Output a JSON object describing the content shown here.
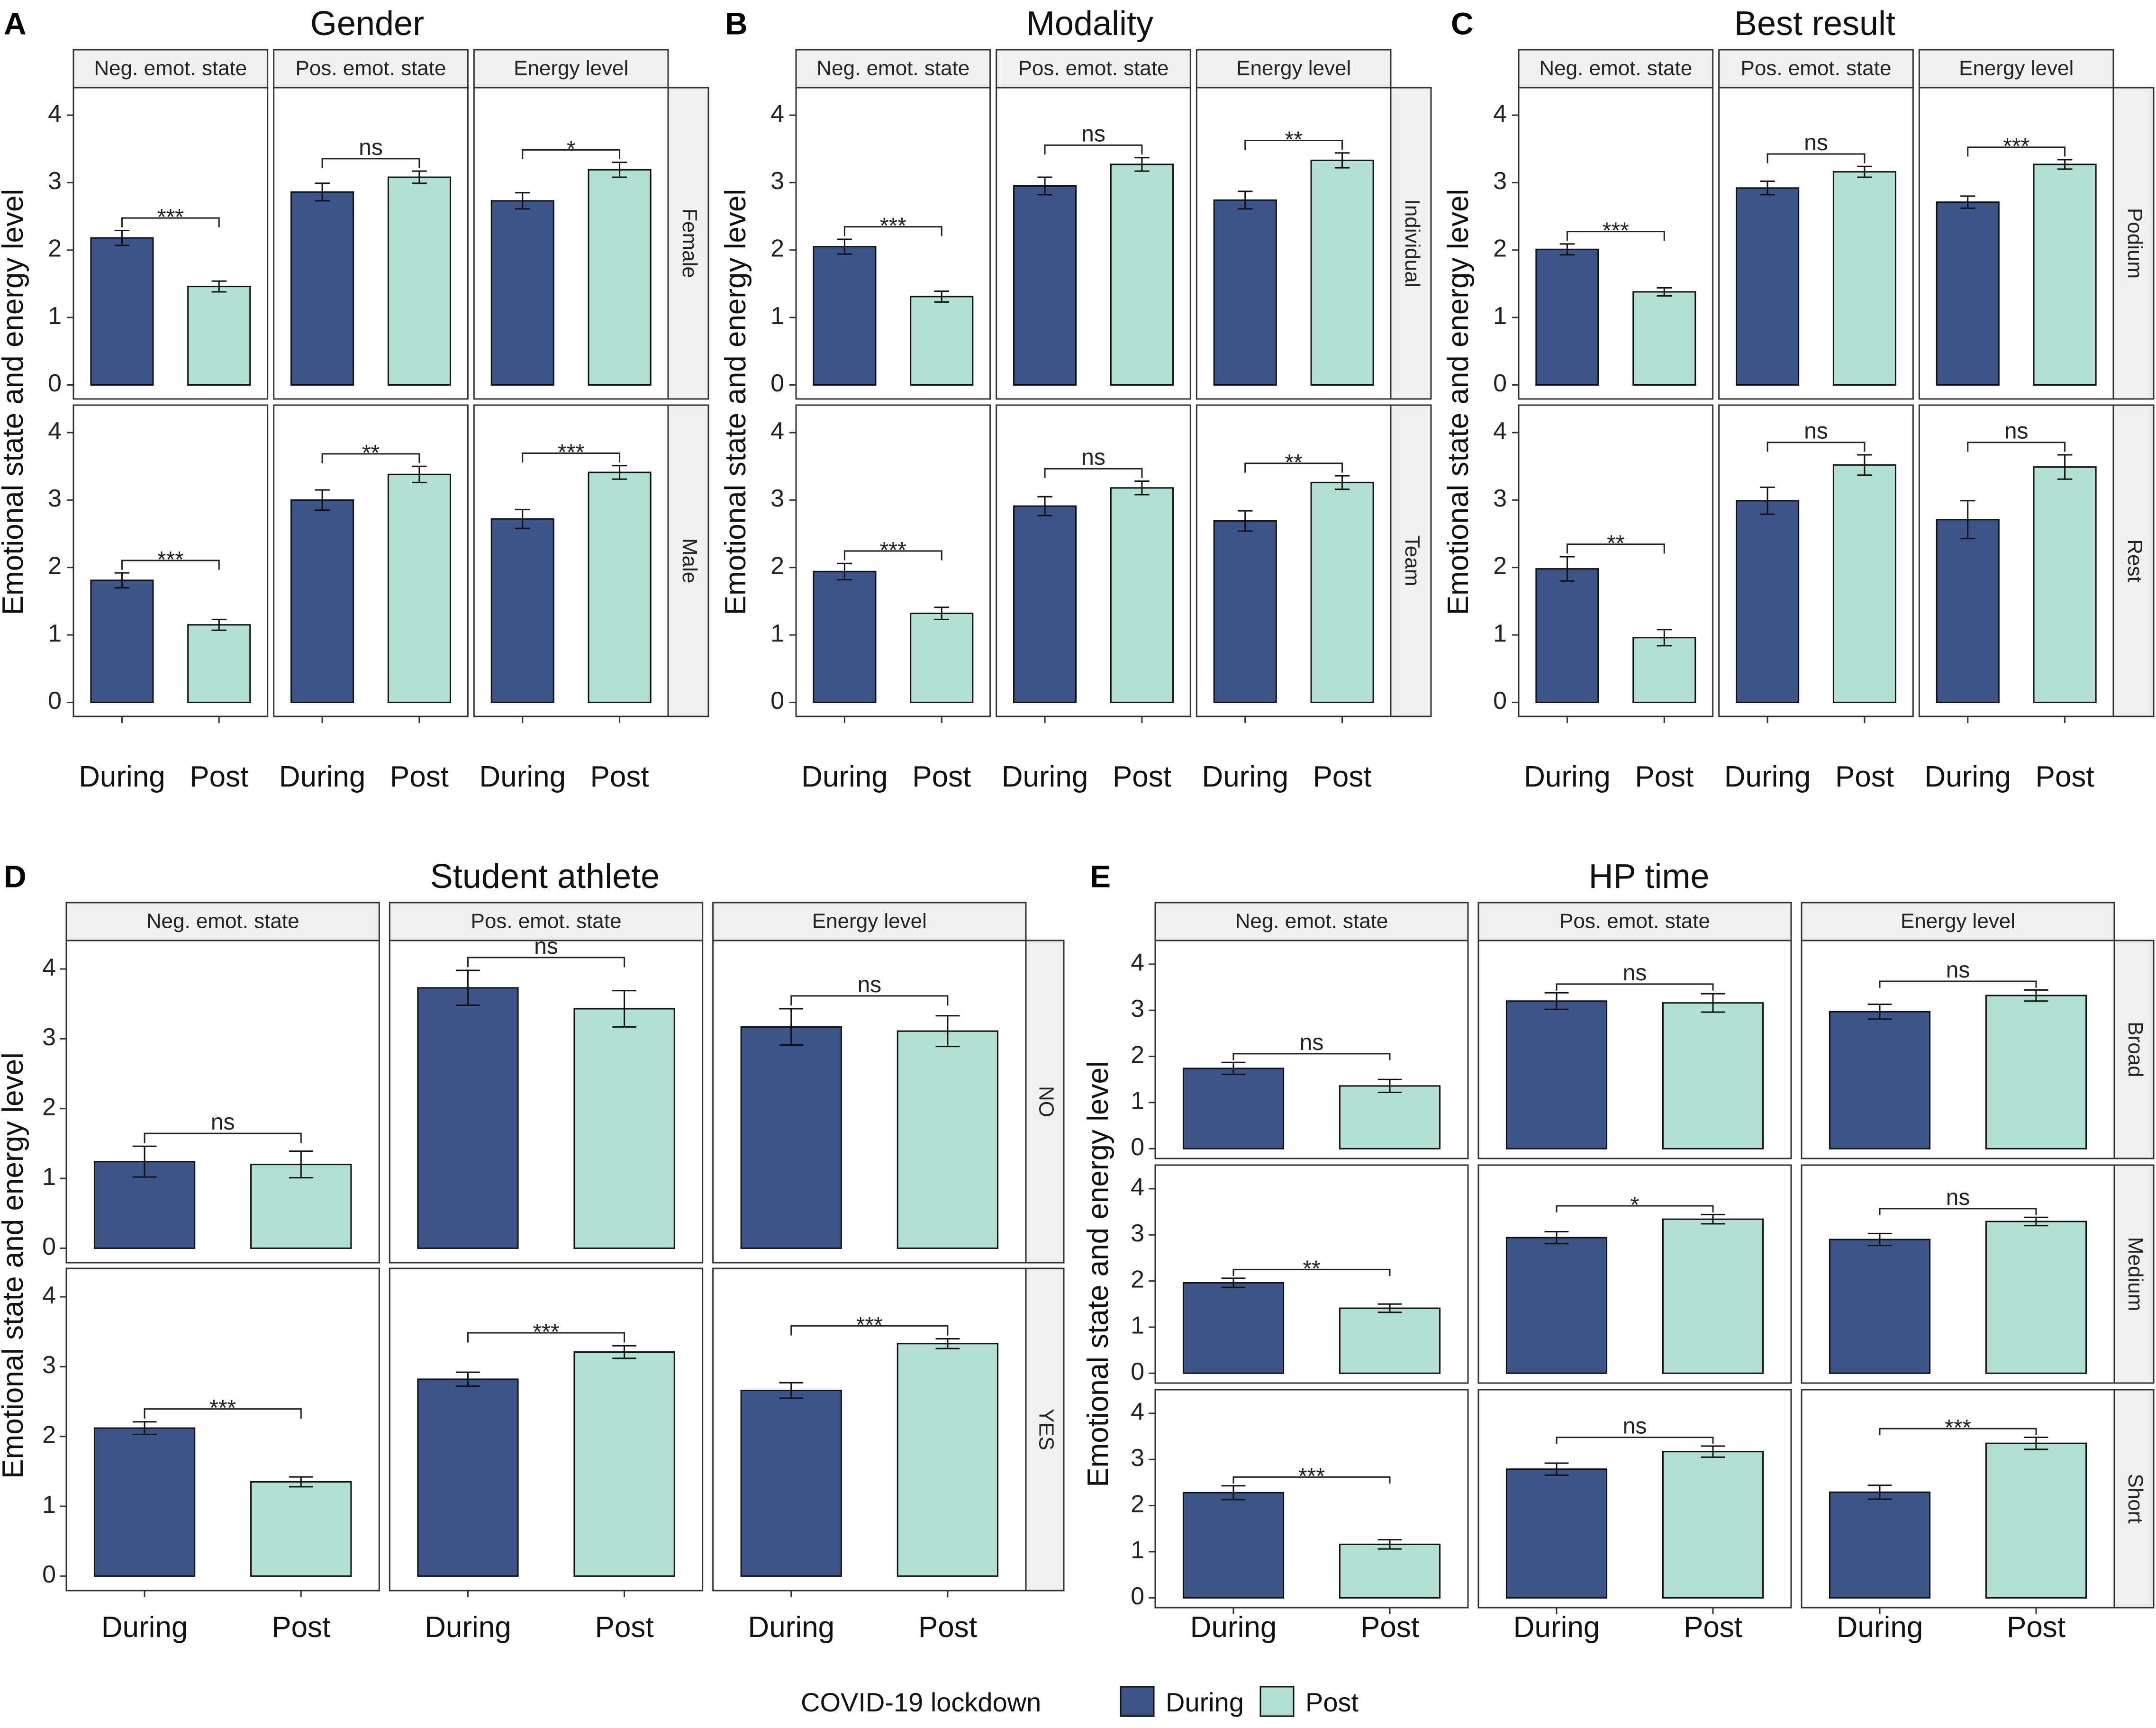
{
  "colors": {
    "During": "#3c5488",
    "Post": "#b3e0d3",
    "strip": "#f0f0f0",
    "border": "#333333"
  },
  "legend": {
    "title": "COVID-19 lockdown",
    "items": [
      "During",
      "Post"
    ]
  },
  "chart_data": [
    {
      "panel": "A",
      "type": "bar",
      "title": "Gender",
      "ylabel": "Emotional state and energy level",
      "ylim": [
        0,
        4.2
      ],
      "yticks": [
        0,
        1,
        2,
        3,
        4
      ],
      "x_categories": [
        "During",
        "Post"
      ],
      "columns": [
        "Neg. emot. state",
        "Pos. emot. state",
        "Energy level"
      ],
      "rows": [
        "Female",
        "Male"
      ],
      "values": [
        [
          [
            2.18,
            1.46
          ],
          [
            2.86,
            3.08
          ],
          [
            2.73,
            3.19
          ]
        ],
        [
          [
            1.81,
            1.15
          ],
          [
            3.0,
            3.38
          ],
          [
            2.72,
            3.41
          ]
        ]
      ],
      "errors": [
        [
          [
            0.11,
            0.08
          ],
          [
            0.13,
            0.09
          ],
          [
            0.12,
            0.11
          ]
        ],
        [
          [
            0.11,
            0.08
          ],
          [
            0.15,
            0.12
          ],
          [
            0.14,
            0.1
          ]
        ]
      ],
      "significance": [
        [
          "***",
          "ns",
          "*"
        ],
        [
          "***",
          "**",
          "***"
        ]
      ]
    },
    {
      "panel": "B",
      "type": "bar",
      "title": "Modality",
      "ylabel": "Emotional state and energy level",
      "ylim": [
        0,
        4.2
      ],
      "yticks": [
        0,
        1,
        2,
        3,
        4
      ],
      "x_categories": [
        "During",
        "Post"
      ],
      "columns": [
        "Neg. emot. state",
        "Pos. emot. state",
        "Energy level"
      ],
      "rows": [
        "Individual",
        "Team"
      ],
      "values": [
        [
          [
            2.05,
            1.31
          ],
          [
            2.95,
            3.27
          ],
          [
            2.74,
            3.33
          ]
        ],
        [
          [
            1.94,
            1.32
          ],
          [
            2.91,
            3.18
          ],
          [
            2.69,
            3.26
          ]
        ]
      ],
      "errors": [
        [
          [
            0.11,
            0.08
          ],
          [
            0.13,
            0.1
          ],
          [
            0.13,
            0.11
          ]
        ],
        [
          [
            0.12,
            0.09
          ],
          [
            0.14,
            0.1
          ],
          [
            0.15,
            0.1
          ]
        ]
      ],
      "significance": [
        [
          "***",
          "ns",
          "**"
        ],
        [
          "***",
          "ns",
          "**"
        ]
      ]
    },
    {
      "panel": "C",
      "type": "bar",
      "title": "Best result",
      "ylabel": "Emotional state and energy level",
      "ylim": [
        0,
        4.2
      ],
      "yticks": [
        0,
        1,
        2,
        3,
        4
      ],
      "x_categories": [
        "During",
        "Post"
      ],
      "columns": [
        "Neg. emot. state",
        "Pos. emot. state",
        "Energy level"
      ],
      "rows": [
        "Podium",
        "Rest"
      ],
      "values": [
        [
          [
            2.01,
            1.38
          ],
          [
            2.92,
            3.16
          ],
          [
            2.71,
            3.27
          ]
        ],
        [
          [
            1.98,
            0.96
          ],
          [
            2.99,
            3.52
          ],
          [
            2.71,
            3.49
          ]
        ]
      ],
      "errors": [
        [
          [
            0.08,
            0.06
          ],
          [
            0.1,
            0.08
          ],
          [
            0.09,
            0.07
          ]
        ],
        [
          [
            0.18,
            0.12
          ],
          [
            0.2,
            0.15
          ],
          [
            0.28,
            0.18
          ]
        ]
      ],
      "significance": [
        [
          "***",
          "ns",
          "***"
        ],
        [
          "**",
          "ns",
          "ns"
        ]
      ]
    },
    {
      "panel": "D",
      "type": "bar",
      "title": "Student athlete",
      "ylabel": "Emotional state and energy level",
      "ylim": [
        0,
        4.2
      ],
      "yticks": [
        0,
        1,
        2,
        3,
        4
      ],
      "x_categories": [
        "During",
        "Post"
      ],
      "columns": [
        "Neg. emot. state",
        "Pos. emot. state",
        "Energy level"
      ],
      "rows": [
        "NO",
        "YES"
      ],
      "values": [
        [
          [
            1.24,
            1.2
          ],
          [
            3.73,
            3.43
          ],
          [
            3.17,
            3.11
          ]
        ],
        [
          [
            2.12,
            1.35
          ],
          [
            2.82,
            3.21
          ],
          [
            2.66,
            3.33
          ]
        ]
      ],
      "errors": [
        [
          [
            0.22,
            0.19
          ],
          [
            0.25,
            0.26
          ],
          [
            0.26,
            0.22
          ]
        ],
        [
          [
            0.09,
            0.07
          ],
          [
            0.1,
            0.09
          ],
          [
            0.11,
            0.07
          ]
        ]
      ],
      "significance": [
        [
          "ns",
          "ns",
          "ns"
        ],
        [
          "***",
          "***",
          "***"
        ]
      ]
    },
    {
      "panel": "E",
      "type": "bar",
      "title": "HP time",
      "ylabel": "Emotional state and energy level",
      "ylim": [
        0,
        4.3
      ],
      "yticks": [
        0,
        1,
        2,
        3,
        4
      ],
      "x_categories": [
        "During",
        "Post"
      ],
      "columns": [
        "Neg. emot. state",
        "Pos. emot. state",
        "Energy level"
      ],
      "rows": [
        "Broad",
        "Medium",
        "Short"
      ],
      "values": [
        [
          [
            1.74,
            1.36
          ],
          [
            3.2,
            3.16
          ],
          [
            2.97,
            3.32
          ]
        ],
        [
          [
            1.96,
            1.41
          ],
          [
            2.94,
            3.34
          ],
          [
            2.9,
            3.29
          ]
        ],
        [
          [
            2.28,
            1.16
          ],
          [
            2.79,
            3.17
          ],
          [
            2.29,
            3.35
          ]
        ]
      ],
      "errors": [
        [
          [
            0.13,
            0.14
          ],
          [
            0.18,
            0.2
          ],
          [
            0.16,
            0.12
          ]
        ],
        [
          [
            0.1,
            0.09
          ],
          [
            0.13,
            0.1
          ],
          [
            0.13,
            0.09
          ]
        ],
        [
          [
            0.15,
            0.1
          ],
          [
            0.13,
            0.12
          ],
          [
            0.15,
            0.13
          ]
        ]
      ],
      "significance": [
        [
          "ns",
          "ns",
          "ns"
        ],
        [
          "**",
          "*",
          "ns"
        ],
        [
          "***",
          "ns",
          "***"
        ]
      ]
    }
  ]
}
